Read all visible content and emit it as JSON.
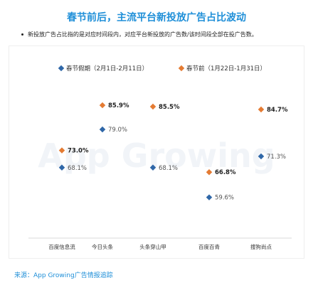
{
  "title": "春节前后，主流平台新投放广告占比波动",
  "note": "新投放广告占比指的是对应时间段内，对应平台新投放的广告数/该时间段全部在投广告数。",
  "source": "来源：App Growing广告情报追踪",
  "watermark": "App Growing",
  "colors": {
    "title": "#1f8fd8",
    "during": "#2f67a8",
    "before": "#e47b33",
    "text": "#333333"
  },
  "chart_data": {
    "type": "scatter",
    "categories": [
      "百度信息流",
      "今日头条",
      "头条穿山甲",
      "百度百青",
      "搜狗尚点"
    ],
    "series": [
      {
        "name": "春节假期（2月1日-2月11日）",
        "marker": "diamond",
        "color": "#2f67a8",
        "values": [
          68.1,
          79.0,
          68.1,
          59.6,
          71.3
        ],
        "labels": [
          "68.1%",
          "79.0%",
          "68.1%",
          "59.6%",
          "71.3%"
        ]
      },
      {
        "name": "春节前（1月22日-1月31日）",
        "marker": "diamond",
        "color": "#e47b33",
        "values": [
          73.0,
          85.9,
          85.5,
          66.8,
          84.7
        ],
        "labels": [
          "73.0%",
          "85.9%",
          "85.5%",
          "66.8%",
          "84.7%"
        ]
      }
    ],
    "value_unit": "%",
    "y_axis_visible": false,
    "legend_position": "top",
    "grid": false
  }
}
